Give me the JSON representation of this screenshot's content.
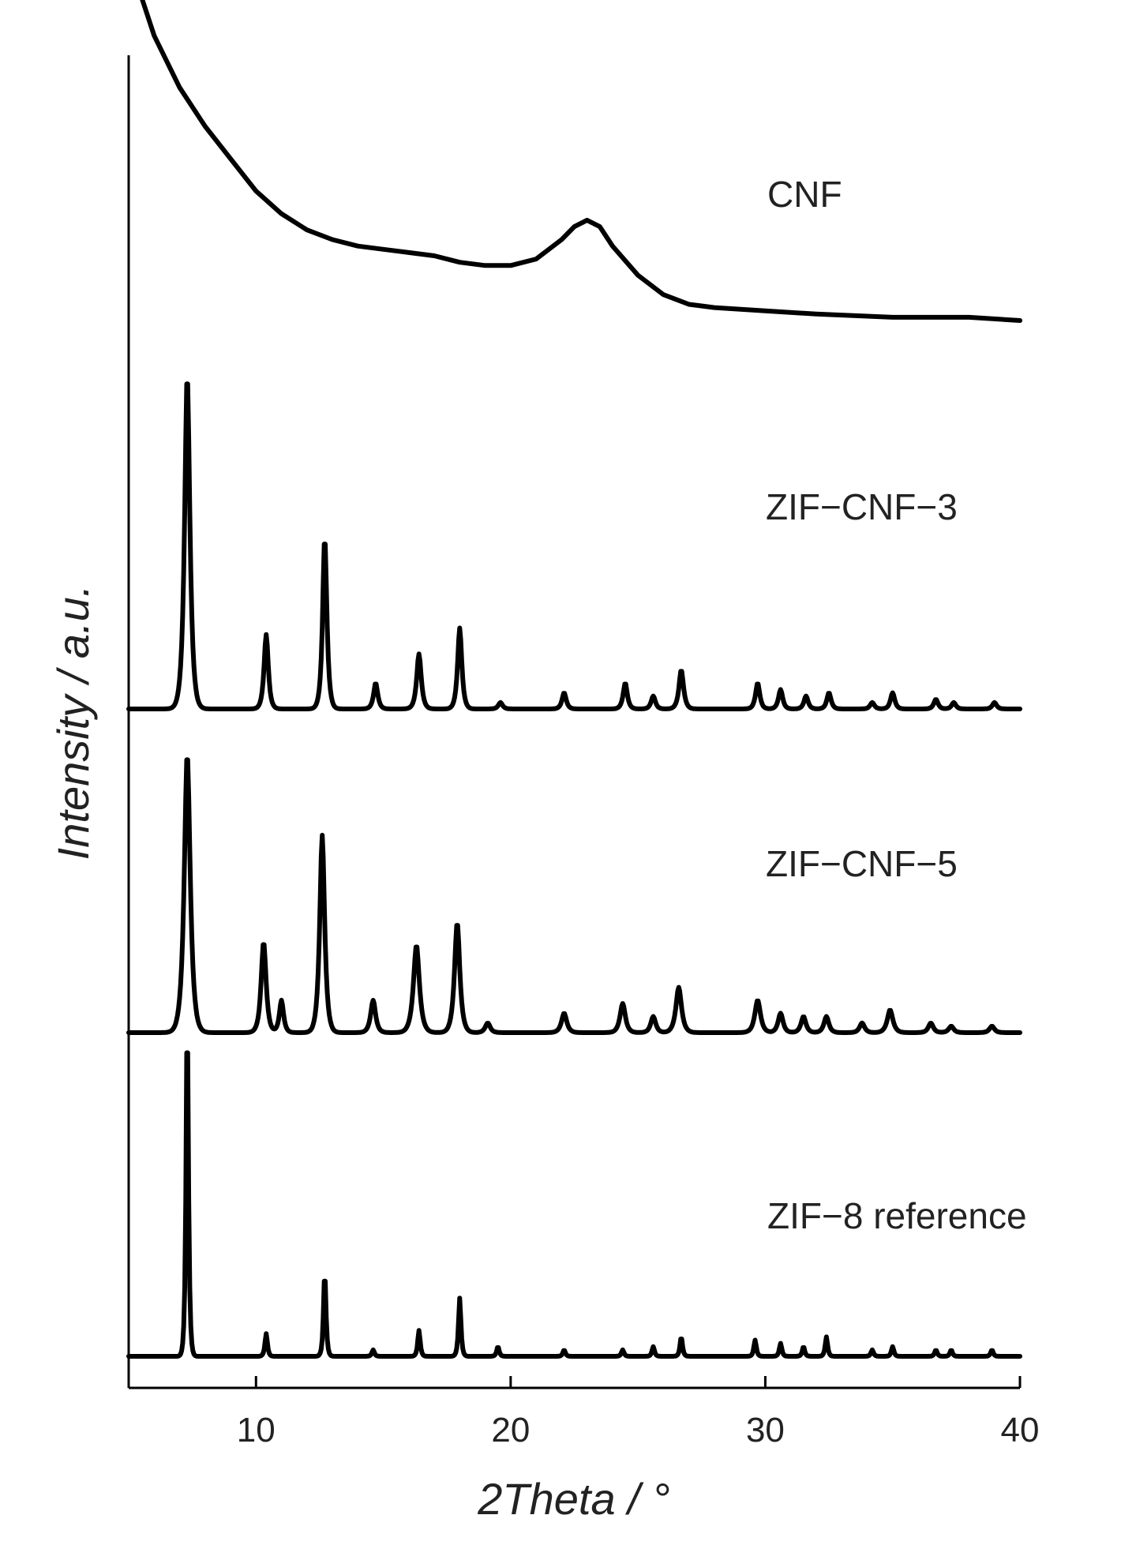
{
  "chart_data": {
    "type": "line",
    "title": "",
    "xlabel": "2Theta / °",
    "ylabel": "Intensity / a.u.",
    "xlim": [
      5,
      40
    ],
    "x_ticks": [
      "10",
      "20",
      "30",
      "40"
    ],
    "y_ticks": [],
    "grid": false,
    "legend": "none",
    "stacked_offset": true,
    "series": [
      {
        "name": "CNF",
        "baseline": 3.2,
        "points": [
          [
            5,
            4.45
          ],
          [
            5.5,
            4.2
          ],
          [
            6,
            4.08
          ],
          [
            7,
            3.92
          ],
          [
            8,
            3.8
          ],
          [
            9,
            3.7
          ],
          [
            10,
            3.6
          ],
          [
            11,
            3.53
          ],
          [
            12,
            3.48
          ],
          [
            13,
            3.45
          ],
          [
            14,
            3.43
          ],
          [
            15,
            3.42
          ],
          [
            16,
            3.41
          ],
          [
            17,
            3.4
          ],
          [
            18,
            3.38
          ],
          [
            19,
            3.37
          ],
          [
            20,
            3.37
          ],
          [
            21,
            3.39
          ],
          [
            22,
            3.45
          ],
          [
            22.5,
            3.49
          ],
          [
            23,
            3.51
          ],
          [
            23.5,
            3.49
          ],
          [
            24,
            3.43
          ],
          [
            25,
            3.34
          ],
          [
            26,
            3.28
          ],
          [
            27,
            3.25
          ],
          [
            28,
            3.24
          ],
          [
            30,
            3.23
          ],
          [
            32,
            3.22
          ],
          [
            35,
            3.21
          ],
          [
            38,
            3.21
          ],
          [
            40,
            3.2
          ]
        ]
      },
      {
        "name": "ZIF−CNF−3",
        "baseline": 2.0,
        "peaks": [
          [
            7.3,
            1.03,
            0.15
          ],
          [
            10.4,
            0.23,
            0.12
          ],
          [
            12.7,
            0.53,
            0.12
          ],
          [
            14.7,
            0.08,
            0.12
          ],
          [
            16.4,
            0.17,
            0.13
          ],
          [
            18.0,
            0.25,
            0.12
          ],
          [
            19.6,
            0.02,
            0.12
          ],
          [
            22.1,
            0.05,
            0.12
          ],
          [
            24.5,
            0.08,
            0.12
          ],
          [
            25.6,
            0.04,
            0.12
          ],
          [
            26.7,
            0.12,
            0.13
          ],
          [
            29.7,
            0.08,
            0.12
          ],
          [
            30.6,
            0.06,
            0.12
          ],
          [
            31.6,
            0.04,
            0.12
          ],
          [
            32.5,
            0.05,
            0.12
          ],
          [
            34.2,
            0.02,
            0.12
          ],
          [
            35.0,
            0.05,
            0.12
          ],
          [
            36.7,
            0.03,
            0.12
          ],
          [
            37.4,
            0.02,
            0.12
          ],
          [
            39.0,
            0.02,
            0.12
          ]
        ]
      },
      {
        "name": "ZIF−CNF−5",
        "baseline": 1.0,
        "peaks": [
          [
            7.3,
            0.86,
            0.17
          ],
          [
            10.3,
            0.28,
            0.14
          ],
          [
            11.0,
            0.1,
            0.12
          ],
          [
            12.6,
            0.61,
            0.14
          ],
          [
            14.6,
            0.1,
            0.14
          ],
          [
            16.3,
            0.27,
            0.17
          ],
          [
            17.9,
            0.34,
            0.15
          ],
          [
            19.1,
            0.03,
            0.14
          ],
          [
            22.1,
            0.06,
            0.15
          ],
          [
            24.4,
            0.09,
            0.15
          ],
          [
            25.6,
            0.05,
            0.14
          ],
          [
            26.6,
            0.14,
            0.16
          ],
          [
            29.7,
            0.1,
            0.16
          ],
          [
            30.6,
            0.06,
            0.14
          ],
          [
            31.5,
            0.05,
            0.14
          ],
          [
            32.4,
            0.05,
            0.14
          ],
          [
            33.8,
            0.03,
            0.14
          ],
          [
            34.9,
            0.07,
            0.16
          ],
          [
            36.5,
            0.03,
            0.14
          ],
          [
            37.3,
            0.02,
            0.14
          ],
          [
            38.9,
            0.02,
            0.14
          ]
        ]
      },
      {
        "name": "ZIF−8 reference",
        "baseline": 0.0,
        "peaks": [
          [
            7.3,
            1.05,
            0.07
          ],
          [
            10.4,
            0.07,
            0.07
          ],
          [
            12.7,
            0.26,
            0.07
          ],
          [
            14.6,
            0.02,
            0.07
          ],
          [
            16.4,
            0.08,
            0.07
          ],
          [
            18.0,
            0.18,
            0.07
          ],
          [
            19.5,
            0.03,
            0.07
          ],
          [
            22.1,
            0.02,
            0.07
          ],
          [
            24.4,
            0.02,
            0.07
          ],
          [
            25.6,
            0.03,
            0.07
          ],
          [
            26.7,
            0.06,
            0.07
          ],
          [
            29.6,
            0.05,
            0.07
          ],
          [
            30.6,
            0.04,
            0.07
          ],
          [
            31.5,
            0.03,
            0.07
          ],
          [
            32.4,
            0.06,
            0.07
          ],
          [
            34.2,
            0.02,
            0.07
          ],
          [
            35.0,
            0.03,
            0.07
          ],
          [
            36.7,
            0.02,
            0.07
          ],
          [
            37.3,
            0.02,
            0.07
          ],
          [
            38.9,
            0.02,
            0.07
          ]
        ]
      }
    ]
  }
}
